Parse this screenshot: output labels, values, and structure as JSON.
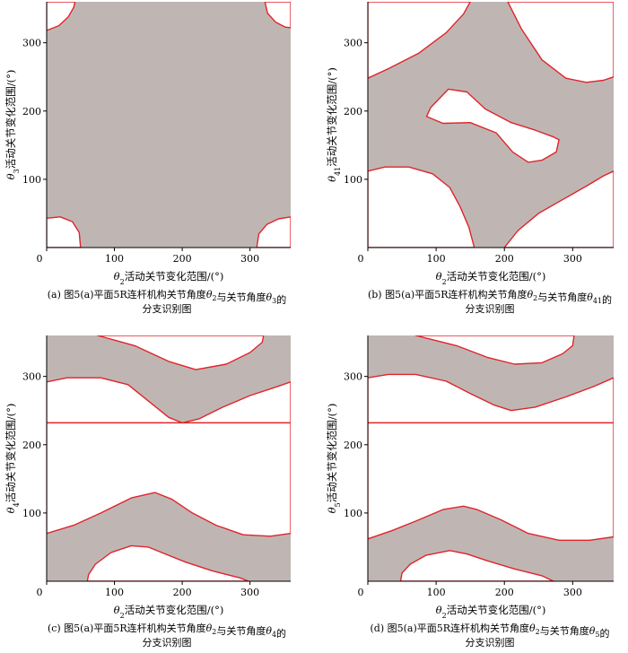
{
  "chart_data": [
    {
      "type": "heatmap",
      "xlabel": "θ2活动关节变化范围/(°)",
      "ylabel": "θ3活动关节变化范围/(°)",
      "xlim": [
        0,
        360
      ],
      "ylim": [
        0,
        360
      ],
      "xticks": [
        "0",
        "100",
        "200",
        "300"
      ],
      "yticks": [
        "100",
        "200",
        "300"
      ],
      "caption": [
        "(a) 图5(a)平面5R连杆机构关节角度θ2与关节角度θ3的",
        "分支识别图"
      ],
      "fill_color": "#bfb6b4",
      "boundary_color": "#e0242a",
      "regions": [
        {
          "points": [
            [
              0,
              360
            ],
            [
              0,
              318
            ],
            [
              18,
              325
            ],
            [
              32,
              338
            ],
            [
              40,
              352
            ],
            [
              42,
              360
            ]
          ]
        },
        {
          "points": [
            [
              322,
              360
            ],
            [
              326,
              343
            ],
            [
              338,
              330
            ],
            [
              352,
              323
            ],
            [
              360,
              322
            ],
            [
              360,
              360
            ]
          ]
        },
        {
          "points": [
            [
              0,
              0
            ],
            [
              0,
              43
            ],
            [
              20,
              45
            ],
            [
              38,
              38
            ],
            [
              48,
              22
            ],
            [
              50,
              0
            ]
          ]
        },
        {
          "points": [
            [
              310,
              0
            ],
            [
              313,
              20
            ],
            [
              325,
              34
            ],
            [
              342,
              42
            ],
            [
              360,
              45
            ],
            [
              360,
              0
            ]
          ]
        }
      ]
    },
    {
      "type": "heatmap",
      "xlabel": "θ2活动关节变化范围/(°)",
      "ylabel": "θ41活动关节变化范围/(°)",
      "xlim": [
        0,
        360
      ],
      "ylim": [
        0,
        360
      ],
      "xticks": [
        "0",
        "100",
        "200",
        "300"
      ],
      "yticks": [
        "100",
        "200",
        "300"
      ],
      "caption": [
        "(b) 图5(a)平面5R连杆机构关节角度θ2与关节角度θ41的",
        "分支识别图"
      ],
      "fill_color": "#bfb6b4",
      "boundary_color": "#e0242a",
      "regions": [
        {
          "points": [
            [
              0,
              360
            ],
            [
              0,
              248
            ],
            [
              30,
              262
            ],
            [
              75,
              285
            ],
            [
              115,
              315
            ],
            [
              140,
              342
            ],
            [
              150,
              360
            ]
          ]
        },
        {
          "points": [
            [
              205,
              360
            ],
            [
              225,
              320
            ],
            [
              255,
              275
            ],
            [
              290,
              248
            ],
            [
              320,
              242
            ],
            [
              345,
              245
            ],
            [
              360,
              250
            ],
            [
              360,
              360
            ]
          ]
        },
        {
          "points": [
            [
              0,
              0
            ],
            [
              0,
              112
            ],
            [
              25,
              118
            ],
            [
              60,
              118
            ],
            [
              95,
              108
            ],
            [
              120,
              88
            ],
            [
              135,
              60
            ],
            [
              148,
              30
            ],
            [
              156,
              0
            ]
          ]
        },
        {
          "points": [
            [
              200,
              0
            ],
            [
              220,
              25
            ],
            [
              250,
              50
            ],
            [
              285,
              70
            ],
            [
              320,
              90
            ],
            [
              345,
              105
            ],
            [
              360,
              112
            ],
            [
              360,
              0
            ]
          ]
        },
        {
          "points": [
            [
              92,
              205
            ],
            [
              118,
              232
            ],
            [
              145,
              228
            ],
            [
              172,
              203
            ],
            [
              210,
              183
            ],
            [
              245,
              172
            ],
            [
              272,
              162
            ],
            [
              280,
              158
            ],
            [
              276,
              140
            ],
            [
              255,
              128
            ],
            [
              235,
              125
            ],
            [
              212,
              140
            ],
            [
              188,
              168
            ],
            [
              150,
              183
            ],
            [
              110,
              182
            ],
            [
              86,
              192
            ]
          ]
        }
      ]
    },
    {
      "type": "heatmap",
      "xlabel": "θ2活动关节变化范围/(°)",
      "ylabel": "θ4活动关节变化范围/(°)",
      "xlim": [
        0,
        360
      ],
      "ylim": [
        0,
        360
      ],
      "xticks": [
        "0",
        "100",
        "200",
        "300"
      ],
      "yticks": [
        "100",
        "200",
        "300"
      ],
      "caption": [
        "(c) 图5(a)平面5R连杆机构关节角度θ2与关节角度θ4的",
        "分支识别图"
      ],
      "fill_color": "#bfb6b4",
      "boundary_color": "#e0242a",
      "regions": [
        {
          "points": [
            [
              75,
              360
            ],
            [
              130,
              345
            ],
            [
              180,
              322
            ],
            [
              220,
              310
            ],
            [
              265,
              318
            ],
            [
              300,
              335
            ],
            [
              318,
              350
            ],
            [
              320,
              360
            ]
          ]
        },
        {
          "points": [
            [
              0,
              292
            ],
            [
              30,
              298
            ],
            [
              80,
              298
            ],
            [
              120,
              288
            ],
            [
              155,
              260
            ],
            [
              180,
              240
            ],
            [
              200,
              232
            ],
            [
              225,
              238
            ],
            [
              260,
              255
            ],
            [
              300,
              272
            ],
            [
              340,
              285
            ],
            [
              360,
              292
            ],
            [
              360,
              232
            ],
            [
              0,
              232
            ]
          ]
        },
        {
          "points": [
            [
              0,
              232
            ],
            [
              360,
              232
            ],
            [
              360,
              70
            ],
            [
              330,
              66
            ],
            [
              290,
              68
            ],
            [
              250,
              82
            ],
            [
              215,
              100
            ],
            [
              185,
              120
            ],
            [
              160,
              130
            ],
            [
              125,
              122
            ],
            [
              80,
              100
            ],
            [
              40,
              82
            ],
            [
              0,
              70
            ]
          ]
        },
        {
          "points": [
            [
              60,
              0
            ],
            [
              62,
              10
            ],
            [
              72,
              25
            ],
            [
              95,
              42
            ],
            [
              125,
              52
            ],
            [
              150,
              50
            ],
            [
              175,
              40
            ],
            [
              205,
              28
            ],
            [
              245,
              15
            ],
            [
              285,
              5
            ],
            [
              298,
              0
            ]
          ]
        }
      ]
    },
    {
      "type": "heatmap",
      "xlabel": "θ2活动关节变化范围/(°)",
      "ylabel": "θ5活动关节变化范围/(°)",
      "xlim": [
        0,
        360
      ],
      "ylim": [
        0,
        360
      ],
      "xticks": [
        "0",
        "100",
        "200",
        "300"
      ],
      "yticks": [
        "100",
        "200",
        "300"
      ],
      "caption": [
        "(d) 图5(a)平面5R连杆机构关节角度θ2与关节角度θ5的",
        "分支识别图"
      ],
      "fill_color": "#bfb6b4",
      "boundary_color": "#e0242a",
      "regions": [
        {
          "points": [
            [
              70,
              360
            ],
            [
              130,
              345
            ],
            [
              175,
              328
            ],
            [
              215,
              318
            ],
            [
              255,
              320
            ],
            [
              285,
              333
            ],
            [
              300,
              345
            ],
            [
              302,
              360
            ]
          ]
        },
        {
          "points": [
            [
              0,
              298
            ],
            [
              30,
              303
            ],
            [
              70,
              303
            ],
            [
              115,
              293
            ],
            [
              150,
              275
            ],
            [
              185,
              258
            ],
            [
              210,
              250
            ],
            [
              245,
              255
            ],
            [
              290,
              270
            ],
            [
              330,
              285
            ],
            [
              360,
              298
            ],
            [
              360,
              232
            ],
            [
              0,
              232
            ]
          ]
        },
        {
          "points": [
            [
              0,
              232
            ],
            [
              360,
              232
            ],
            [
              360,
              65
            ],
            [
              325,
              60
            ],
            [
              280,
              60
            ],
            [
              235,
              70
            ],
            [
              195,
              90
            ],
            [
              160,
              105
            ],
            [
              140,
              110
            ],
            [
              110,
              105
            ],
            [
              70,
              88
            ],
            [
              35,
              74
            ],
            [
              0,
              62
            ]
          ]
        },
        {
          "points": [
            [
              48,
              0
            ],
            [
              50,
              12
            ],
            [
              62,
              25
            ],
            [
              85,
              38
            ],
            [
              120,
              45
            ],
            [
              145,
              40
            ],
            [
              175,
              30
            ],
            [
              215,
              18
            ],
            [
              255,
              8
            ],
            [
              272,
              0
            ]
          ]
        }
      ]
    }
  ]
}
